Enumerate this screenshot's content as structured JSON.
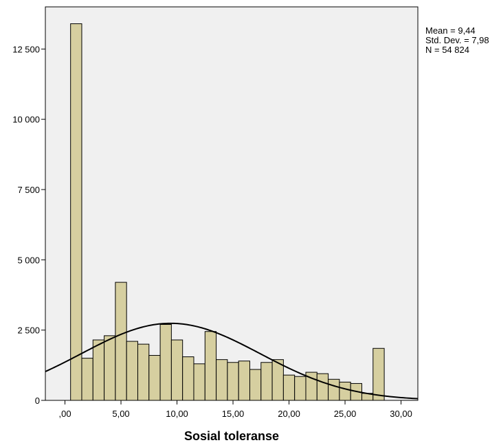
{
  "chart_data": {
    "type": "bar",
    "title": "",
    "xlabel": "Sosial toleranse",
    "ylabel": "",
    "xlim": [
      -1.75,
      31.5
    ],
    "ylim": [
      0,
      14000
    ],
    "bin_width": 1,
    "bins": [
      {
        "x0": 0.5,
        "x1": 1.5,
        "value": 13400
      },
      {
        "x0": 1.5,
        "x1": 2.5,
        "value": 1500
      },
      {
        "x0": 2.5,
        "x1": 3.5,
        "value": 2150
      },
      {
        "x0": 3.5,
        "x1": 4.5,
        "value": 2300
      },
      {
        "x0": 4.5,
        "x1": 5.5,
        "value": 4200
      },
      {
        "x0": 5.5,
        "x1": 6.5,
        "value": 2100
      },
      {
        "x0": 6.5,
        "x1": 7.5,
        "value": 2000
      },
      {
        "x0": 7.5,
        "x1": 8.5,
        "value": 1600
      },
      {
        "x0": 8.5,
        "x1": 9.5,
        "value": 2700
      },
      {
        "x0": 9.5,
        "x1": 10.5,
        "value": 2150
      },
      {
        "x0": 10.5,
        "x1": 11.5,
        "value": 1550
      },
      {
        "x0": 11.5,
        "x1": 12.5,
        "value": 1300
      },
      {
        "x0": 12.5,
        "x1": 13.5,
        "value": 2450
      },
      {
        "x0": 13.5,
        "x1": 14.5,
        "value": 1450
      },
      {
        "x0": 14.5,
        "x1": 15.5,
        "value": 1350
      },
      {
        "x0": 15.5,
        "x1": 16.5,
        "value": 1400
      },
      {
        "x0": 16.5,
        "x1": 17.5,
        "value": 1100
      },
      {
        "x0": 17.5,
        "x1": 18.5,
        "value": 1350
      },
      {
        "x0": 18.5,
        "x1": 19.5,
        "value": 1450
      },
      {
        "x0": 19.5,
        "x1": 20.5,
        "value": 900
      },
      {
        "x0": 20.5,
        "x1": 21.5,
        "value": 850
      },
      {
        "x0": 21.5,
        "x1": 22.5,
        "value": 1000
      },
      {
        "x0": 22.5,
        "x1": 23.5,
        "value": 950
      },
      {
        "x0": 23.5,
        "x1": 24.5,
        "value": 750
      },
      {
        "x0": 24.5,
        "x1": 25.5,
        "value": 650
      },
      {
        "x0": 25.5,
        "x1": 26.5,
        "value": 600
      },
      {
        "x0": 26.5,
        "x1": 27.5,
        "value": 250
      },
      {
        "x0": 27.5,
        "x1": 28.5,
        "value": 1850
      }
    ],
    "normal_curve": {
      "mean": 9.44,
      "sd": 7.98,
      "n": 54824
    },
    "x_ticks": [
      {
        "value": 0,
        "label": ",00"
      },
      {
        "value": 5,
        "label": "5,00"
      },
      {
        "value": 10,
        "label": "10,00"
      },
      {
        "value": 15,
        "label": "15,00"
      },
      {
        "value": 20,
        "label": "20,00"
      },
      {
        "value": 25,
        "label": "25,00"
      },
      {
        "value": 30,
        "label": "30,00"
      }
    ],
    "y_ticks": [
      {
        "value": 0,
        "label": "0"
      },
      {
        "value": 2500,
        "label": "2 500"
      },
      {
        "value": 5000,
        "label": "5 000"
      },
      {
        "value": 7500,
        "label": "7 500"
      },
      {
        "value": 10000,
        "label": "10 000"
      },
      {
        "value": 12500,
        "label": "12 500"
      }
    ],
    "annotations": [
      "Mean = 9,44",
      "Std. Dev. = 7,98",
      "N = 54 824"
    ],
    "colors": {
      "bar_fill": "#d6cfa0",
      "bar_stroke": "#000000",
      "plot_background": "#f0f0f0",
      "curve": "#000000"
    },
    "grid": false
  }
}
